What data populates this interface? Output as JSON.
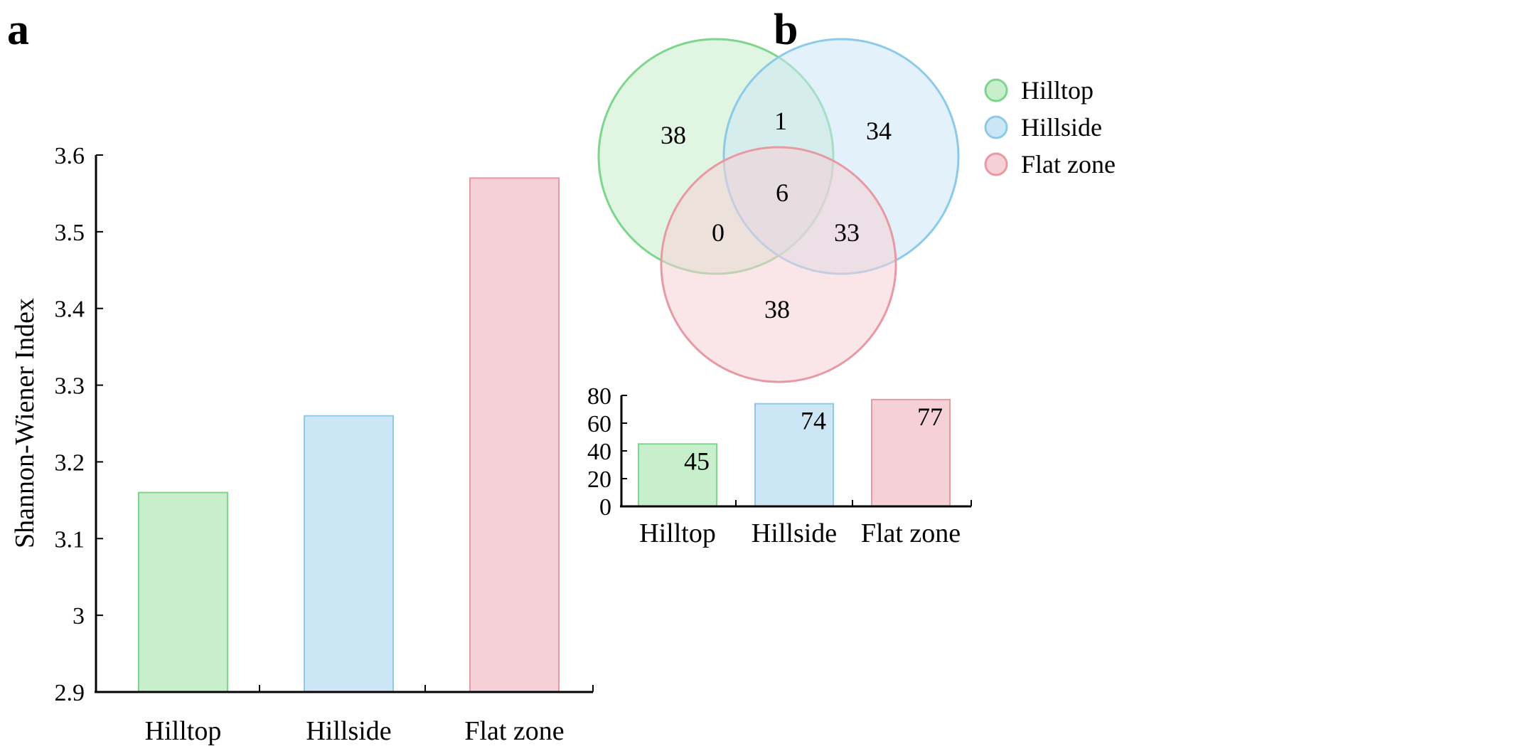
{
  "panels": {
    "a": "a",
    "b": "b"
  },
  "colors": {
    "green_fill": "#c7efcc",
    "green_edge": "#7ed58c",
    "blue_fill": "#cce6f6",
    "blue_edge": "#8ccbe8",
    "red_fill": "#f5d0d6",
    "red_edge": "#e79aa4"
  },
  "chart_data": [
    {
      "type": "bar",
      "categories": [
        "Hilltop",
        "Hillside",
        "Flat zone"
      ],
      "values": [
        3.16,
        3.26,
        3.57
      ],
      "ylabel": "Shannon-Wiener Index",
      "ylim": [
        2.9,
        3.6
      ],
      "yticks": [
        2.9,
        3.0,
        3.1,
        3.2,
        3.3,
        3.4,
        3.5,
        3.6
      ],
      "ytick_labels": [
        "2.9",
        "3",
        "3.1",
        "3.2",
        "3.3",
        "3.4",
        "3.5",
        "3.6"
      ],
      "grid": false
    },
    {
      "type": "venn",
      "sets": [
        "Hilltop",
        "Hillside",
        "Flat zone"
      ],
      "regions": {
        "hilltop_only": 38,
        "hillside_only": 34,
        "flat_only": 38,
        "hilltop_hillside": 1,
        "hilltop_flat": 0,
        "hillside_flat": 33,
        "all_three": 6
      },
      "legend_position": "right"
    },
    {
      "type": "bar",
      "categories": [
        "Hilltop",
        "Hillside",
        "Flat zone"
      ],
      "values": [
        45,
        74,
        77
      ],
      "ylim": [
        0,
        80
      ],
      "yticks": [
        0,
        20,
        40,
        60,
        80
      ],
      "grid": false
    }
  ]
}
